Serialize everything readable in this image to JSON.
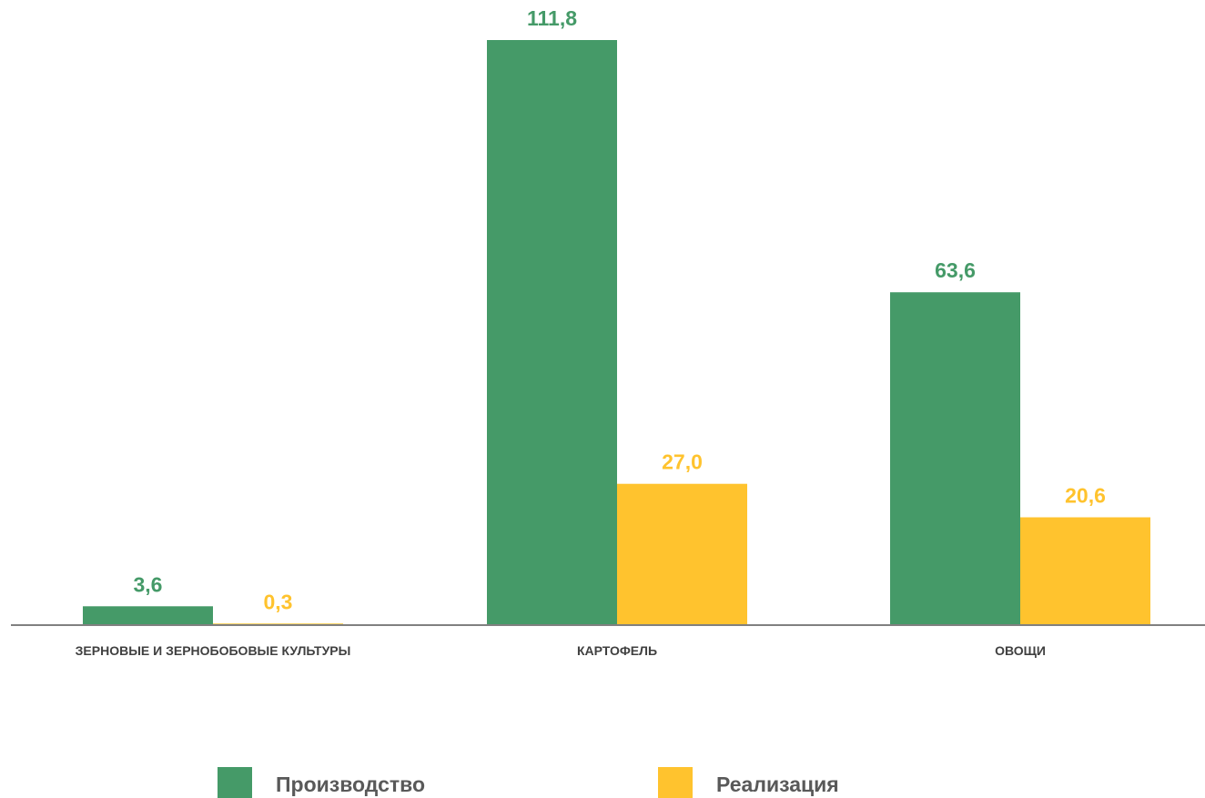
{
  "chart_data": {
    "type": "bar",
    "categories": [
      "ЗЕРНОВЫЕ И ЗЕРНОБОБОВЫЕ КУЛЬТУРЫ",
      "КАРТОФЕЛЬ",
      "ОВОЩИ"
    ],
    "series": [
      {
        "name": "Производство",
        "values": [
          3.6,
          111.8,
          63.6
        ],
        "labels": [
          "3,6",
          "111,8",
          "63,6"
        ],
        "color": "#459A68"
      },
      {
        "name": "Реализация",
        "values": [
          0.3,
          27.0,
          20.6
        ],
        "labels": [
          "0,3",
          "27,0",
          "20,6"
        ],
        "color": "#FFC32E"
      }
    ],
    "title": "",
    "xlabel": "",
    "ylabel": "",
    "ylim": [
      0,
      111.8
    ],
    "grid": false,
    "legend_position": "bottom"
  },
  "colors": {
    "axis": "#808080",
    "category_text": "#404040",
    "legend_text": "#595959"
  }
}
